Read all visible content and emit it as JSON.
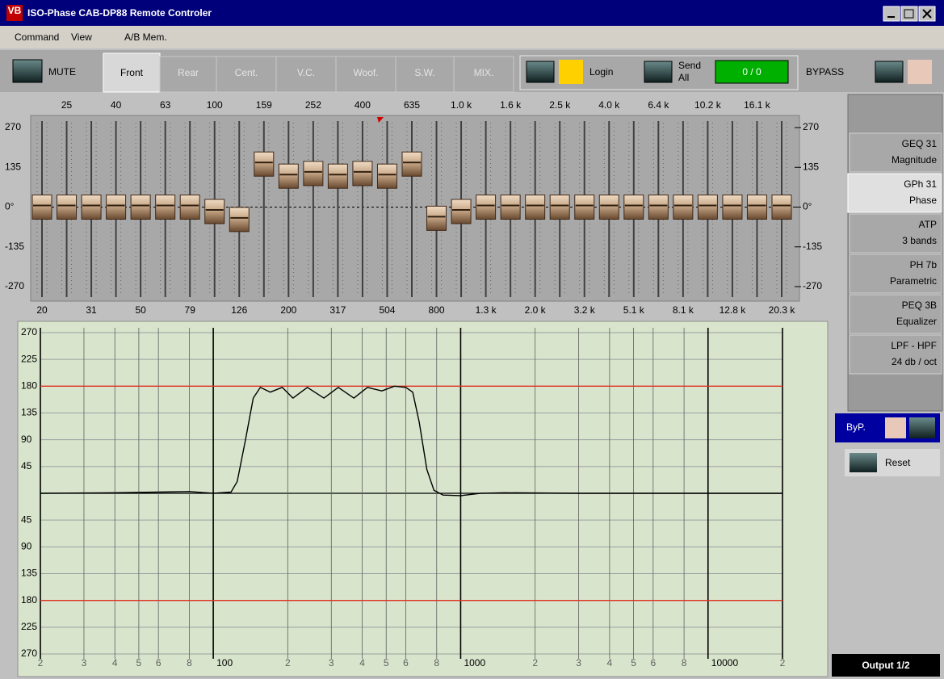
{
  "window": {
    "title": "ISO-Phase CAB-DP88 Remote Controler",
    "icon": "VB"
  },
  "menu": [
    "Command",
    "View",
    "A/B Mem."
  ],
  "toolbar": {
    "mute": "MUTE",
    "tabs": [
      "Front",
      "Rear",
      "Cent.",
      "V.C.",
      "Woof.",
      "S.W.",
      "MIX."
    ],
    "active_tab": 0,
    "login": "Login",
    "send": [
      "Send",
      "All"
    ],
    "counter": "0 / 0",
    "bypass": "BYPASS"
  },
  "eq": {
    "top_labels": [
      "25",
      "40",
      "63",
      "100",
      "159",
      "252",
      "400",
      "635",
      "1.0 k",
      "1.6 k",
      "2.5 k",
      "4.0 k",
      "6.4 k",
      "10.2 k",
      "16.1 k"
    ],
    "bottom_labels": [
      "20",
      "31",
      "50",
      "79",
      "126",
      "200",
      "317",
      "504",
      "800",
      "1.3 k",
      "2.0 k",
      "3.2 k",
      "5.1 k",
      "8.1 k",
      "12.8 k",
      "20.3 k"
    ],
    "ylim": [
      -270,
      270
    ],
    "yticks": [
      270,
      135,
      {
        "value": 0,
        "label": "0°"
      },
      -135,
      -270
    ],
    "sliders": [
      0,
      0,
      0,
      0,
      0,
      0,
      0,
      -15,
      -42,
      146,
      105,
      114,
      105,
      114,
      105,
      146,
      -38,
      -15,
      0,
      0,
      0,
      0,
      0,
      0,
      0,
      0,
      0,
      0,
      0,
      0,
      0
    ]
  },
  "graph": {
    "xlim": [
      20,
      20000
    ],
    "ylim": [
      -270,
      270
    ],
    "xticks": [
      {
        "value": 20,
        "label": "2"
      },
      {
        "value": 30,
        "label": "3"
      },
      {
        "value": 40,
        "label": "4"
      },
      {
        "value": 50,
        "label": "5"
      },
      {
        "value": 60,
        "label": "6"
      },
      {
        "value": 80,
        "label": "8"
      },
      100,
      {
        "value": 200,
        "label": "2"
      },
      {
        "value": 300,
        "label": "3"
      },
      {
        "value": 400,
        "label": "4"
      },
      {
        "value": 500,
        "label": "5"
      },
      {
        "value": 600,
        "label": "6"
      },
      {
        "value": 800,
        "label": "8"
      },
      1000,
      {
        "value": 2000,
        "label": "2"
      },
      {
        "value": 3000,
        "label": "3"
      },
      {
        "value": 4000,
        "label": "4"
      },
      {
        "value": 5000,
        "label": "5"
      },
      {
        "value": 6000,
        "label": "6"
      },
      {
        "value": 8000,
        "label": "8"
      },
      10000,
      {
        "value": 20000,
        "label": "2"
      }
    ],
    "yticks": [
      270,
      225,
      180,
      135,
      90,
      45,
      {
        "value": 0,
        "label": null
      },
      {
        "value": -45,
        "label": "45"
      },
      {
        "value": -90,
        "label": "90"
      },
      {
        "value": -135,
        "label": "135"
      },
      {
        "value": -180,
        "label": "180"
      },
      {
        "value": -225,
        "label": "225"
      },
      {
        "value": -270,
        "label": "270"
      }
    ],
    "limit_lines": [
      180,
      -180
    ],
    "curve": {
      "x": [
        20,
        40,
        60,
        80,
        100,
        118,
        125,
        135,
        145,
        155,
        170,
        190,
        210,
        240,
        280,
        320,
        370,
        420,
        480,
        540,
        600,
        640,
        680,
        730,
        780,
        850,
        1000,
        1200,
        1500,
        3000,
        20000
      ],
      "values": [
        0,
        1,
        2,
        3,
        0,
        2,
        20,
        90,
        160,
        178,
        170,
        178,
        160,
        178,
        160,
        178,
        160,
        178,
        172,
        180,
        178,
        170,
        120,
        40,
        5,
        -3,
        -4,
        0,
        1,
        0,
        0
      ]
    }
  },
  "side_tabs": [
    {
      "name": "GEQ 31",
      "sub": "Magnitude"
    },
    {
      "name": "GPh 31",
      "sub": "Phase"
    },
    {
      "name": "ATP",
      "sub": "3 bands"
    },
    {
      "name": "PH 7b",
      "sub": "Parametric"
    },
    {
      "name": "PEQ 3B",
      "sub": "Equalizer"
    },
    {
      "name": "LPF - HPF",
      "sub": "24 db / oct"
    }
  ],
  "active_side_tab": 1,
  "bypass_small": "ByP.",
  "reset": "Reset",
  "output": "Output 1/2"
}
